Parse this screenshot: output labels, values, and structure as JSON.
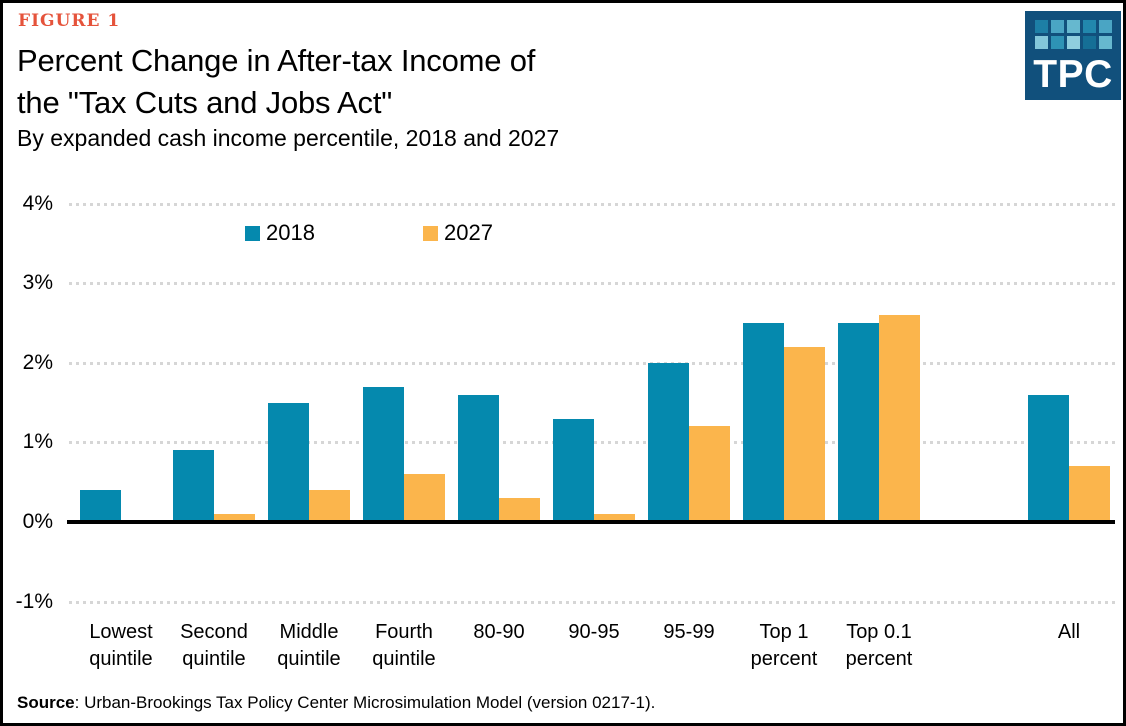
{
  "figure_label": "FIGURE 1",
  "title": {
    "line1": "Percent Change in After-tax Income of",
    "line2": "the \"Tax Cuts and Jobs Act\"",
    "subtitle": "By expanded cash income percentile, 2018 and 2027"
  },
  "logo": {
    "text": "TPC",
    "background": "#11507c",
    "tile_colors": [
      "#1d7fa6",
      "#4aa5c4",
      "#66b8cf",
      "#2288ad",
      "#4aa5c4",
      "#83c7da",
      "#2e93b5",
      "#8fcede",
      "#156f96",
      "#66b8cf"
    ]
  },
  "colors": {
    "series_2018": "#0589ae",
    "series_2027": "#fbb54c",
    "figure_label": "#e5533b",
    "gridline": "#d6d6d6",
    "axis": "#000000"
  },
  "source": {
    "label": "Source",
    "text": ": Urban-Brookings Tax Policy Center Microsimulation Model (version 0217-1)."
  },
  "chart_data": {
    "type": "bar",
    "title": "Percent Change in After-tax Income of the \"Tax Cuts and Jobs Act\"",
    "subtitle": "By expanded cash income percentile, 2018 and 2027",
    "categories": [
      "Lowest\nquintile",
      "Second\nquintile",
      "Middle\nquintile",
      "Fourth\nquintile",
      "80-90",
      "90-95",
      "95-99",
      "Top 1\npercent",
      "Top 0.1\npercent",
      "All"
    ],
    "series": [
      {
        "name": "2018",
        "color": "#0589ae",
        "values": [
          0.4,
          0.9,
          1.5,
          1.7,
          1.6,
          1.3,
          2.0,
          2.5,
          2.5,
          1.6
        ]
      },
      {
        "name": "2027",
        "color": "#fbb54c",
        "values": [
          0.0,
          0.1,
          0.4,
          0.6,
          0.3,
          0.1,
          1.2,
          2.2,
          2.6,
          0.7
        ]
      }
    ],
    "xlabel": "",
    "ylabel": "",
    "ylim": [
      -1,
      4
    ],
    "yticks": [
      {
        "label": "4%",
        "value": 4
      },
      {
        "label": "3%",
        "value": 3
      },
      {
        "label": "2%",
        "value": 2
      },
      {
        "label": "1%",
        "value": 1
      },
      {
        "label": "0%",
        "value": 0
      },
      {
        "label": "-1%",
        "value": -1
      }
    ],
    "grid": "horizontal dotted, solid baseline at 0",
    "legend_position": "inside top-left"
  }
}
